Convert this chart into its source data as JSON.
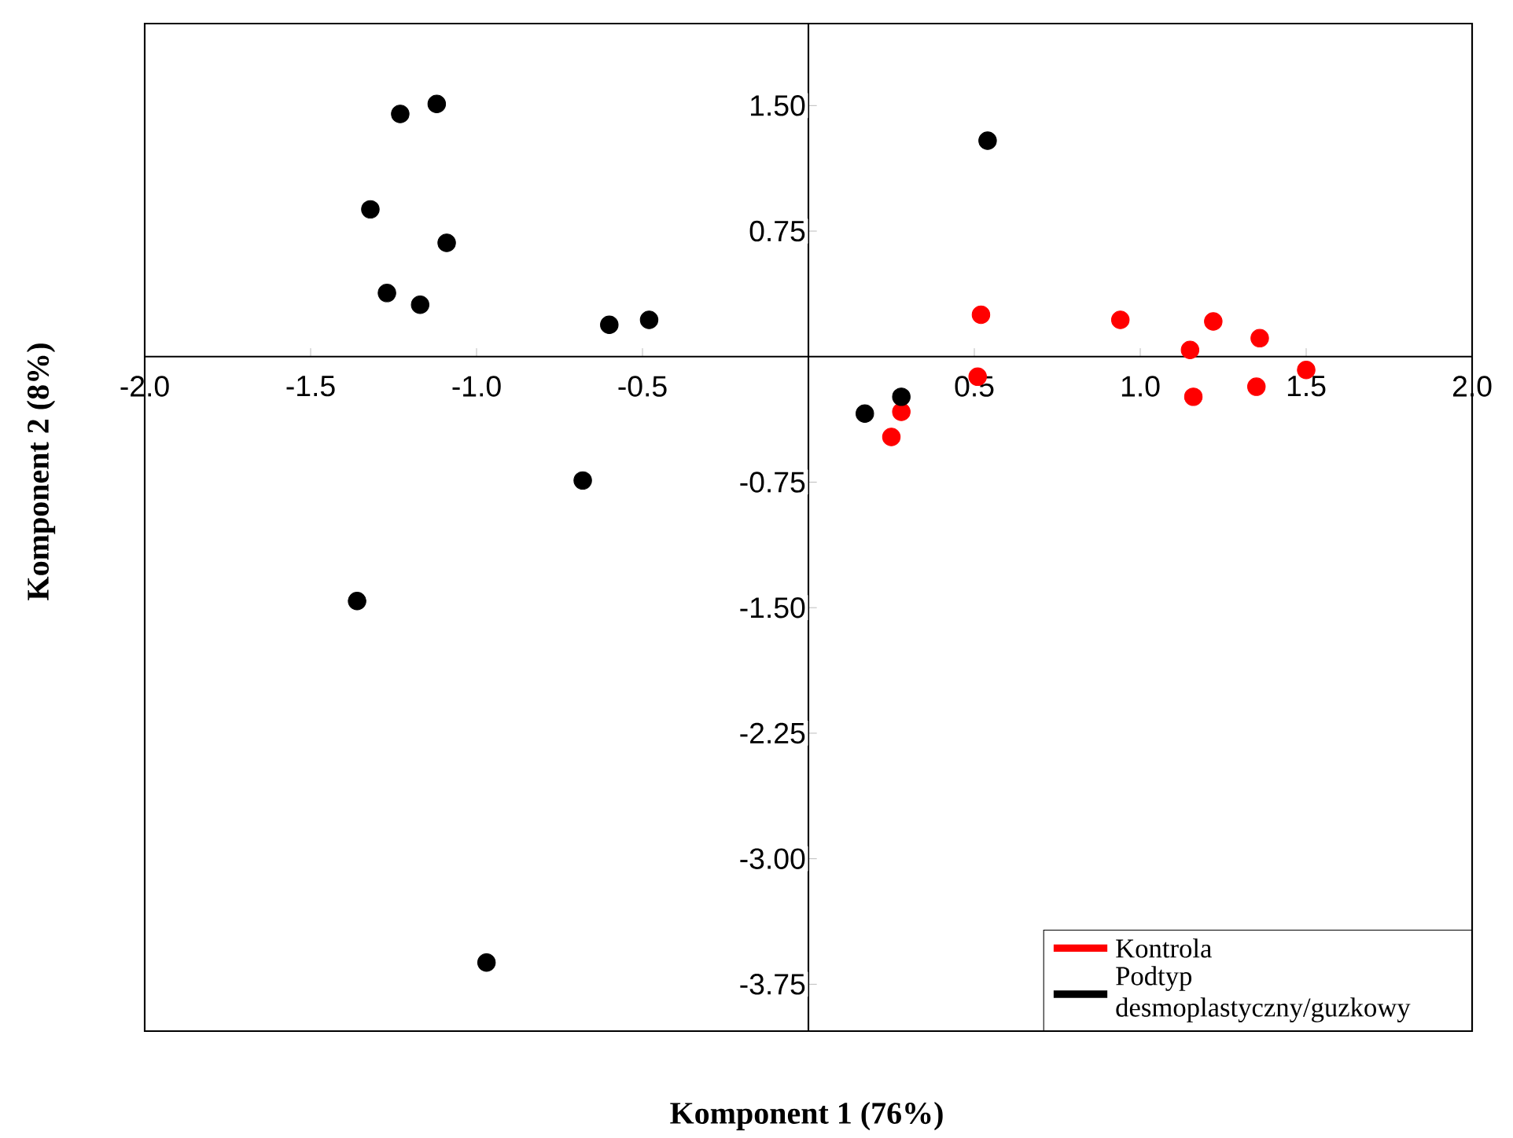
{
  "chart_data": {
    "type": "scatter",
    "xlabel": "Komponent 1 (76%)",
    "ylabel": "Komponent 2 (8%)",
    "xlim": [
      -2.0,
      2.0
    ],
    "ylim": [
      -4.03,
      1.99
    ],
    "xticks": [
      {
        "value": -2.0,
        "label": "-2.0"
      },
      {
        "value": -1.5,
        "label": "-1.5"
      },
      {
        "value": -1.0,
        "label": "-1.0"
      },
      {
        "value": -0.5,
        "label": "-0.5"
      },
      {
        "value": 0.5,
        "label": "0.5"
      },
      {
        "value": 1.0,
        "label": "1.0"
      },
      {
        "value": 1.5,
        "label": "1.5"
      },
      {
        "value": 2.0,
        "label": "2.0"
      }
    ],
    "yticks": [
      {
        "value": 1.5,
        "label": "1.50"
      },
      {
        "value": 0.75,
        "label": "0.75"
      },
      {
        "value": -0.75,
        "label": "-0.75"
      },
      {
        "value": -1.5,
        "label": "-1.50"
      },
      {
        "value": -2.25,
        "label": "-2.25"
      },
      {
        "value": -3.0,
        "label": "-3.00"
      },
      {
        "value": -3.75,
        "label": "-3.75"
      }
    ],
    "legend": "bottom right",
    "marker": "circle",
    "grid": false,
    "series": [
      {
        "name": "Kontrola",
        "color": "#ff0000",
        "x": [
          0.52,
          0.51,
          0.94,
          1.22,
          1.15,
          1.36,
          1.16,
          1.35,
          1.5,
          0.28,
          0.25
        ],
        "values": [
          0.25,
          -0.12,
          0.22,
          0.21,
          0.04,
          0.11,
          -0.24,
          -0.18,
          -0.08,
          -0.33,
          -0.48
        ]
      },
      {
        "name": "Podtyp desmoplastyczny/guzkowy",
        "color": "#000000",
        "x": [
          -1.23,
          -1.12,
          -1.32,
          -1.09,
          -1.27,
          -1.17,
          -0.6,
          -0.48,
          0.54,
          0.28,
          0.17,
          -0.68,
          -1.36,
          -0.97
        ],
        "values": [
          1.45,
          1.51,
          0.88,
          0.68,
          0.38,
          0.31,
          0.19,
          0.22,
          1.29,
          -0.24,
          -0.34,
          -0.74,
          -1.46,
          -3.62
        ]
      }
    ]
  }
}
